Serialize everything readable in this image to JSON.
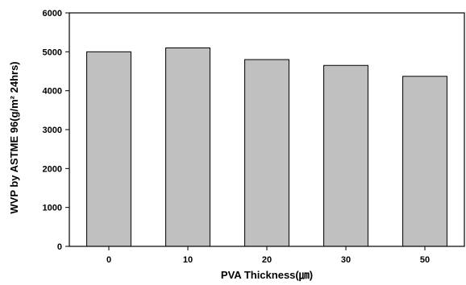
{
  "chart_data": {
    "type": "bar",
    "title": "",
    "xlabel": "PVA Thickness(㎛)",
    "ylabel": "WVP by ASTME 96(g/m² 24hrs)",
    "categories": [
      "0",
      "10",
      "20",
      "30",
      "50"
    ],
    "values": [
      5000,
      5100,
      4800,
      4650,
      4370
    ],
    "ylim": [
      0,
      6000
    ],
    "yticks": [
      "0",
      "1000",
      "2000",
      "3000",
      "4000",
      "5000",
      "6000"
    ],
    "grid": false,
    "legend": "none",
    "bar_color": "#c0c0c0",
    "bar_stroke": "#000000"
  }
}
